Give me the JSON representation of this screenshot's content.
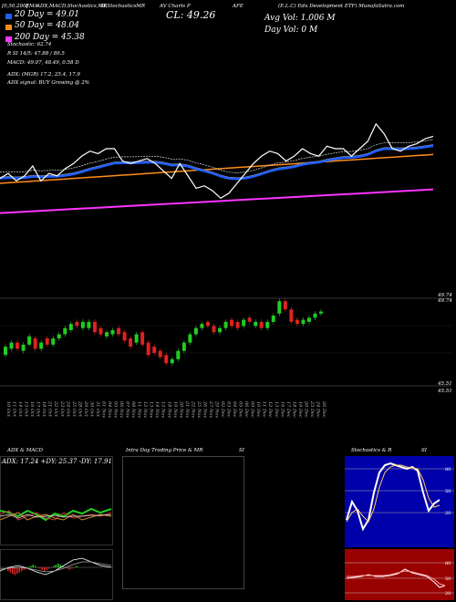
{
  "header": {
    "title_left": "ADX,MACD,Stochastics,MR",
    "date_range": "[0,50,200]",
    "ema_label": "EMA",
    "symbol_label": "SLStochasticsMR",
    "mid_label": "AV Charts P",
    "afe": "AFE",
    "etf_label": "(E.L.C) Edu Development ETF) MunafaSutra.com"
  },
  "legend": {
    "ema20": "20  Day  =  49.01",
    "ema50": "50  Day  =  48.04",
    "ema200": "200  Day  =  45.38",
    "cl": "CL: 49.26",
    "avg_vol": "Avg Vol: 1.006   M",
    "day_vol": "Day Vol: 0   M",
    "r_si": "R                 SI 14/5: 47.88 / 89.5",
    "stochastic": "Stochastic: 62.74",
    "macd": "MACD: 49.07, 48.49, 0.58  D",
    "adx": "ADX:                              (MGR) 17.2,  25.4,  17.9",
    "adx_signal": "ADX  signal:                                  BUY Growing @ 2%"
  },
  "price_axis": {
    "top_label": "49.74",
    "top_label2": "49.74",
    "bottom_label": "45.51",
    "bottom_label2": "45.51"
  },
  "x_axis": {
    "dates": [
      "10 Oct",
      "11 Oct",
      "14 Oct",
      "15 Oct",
      "16 Oct",
      "17 Oct",
      "18 Oct",
      "21 Oct",
      "22 Oct",
      "23 Oct",
      "24 Oct",
      "25 Oct",
      "28 Oct",
      "29 Oct",
      "30 Oct",
      "31 Oct",
      "01 Nov",
      "04 Nov",
      "05 Nov",
      "06 Nov",
      "07 Nov",
      "08 Nov",
      "11 Nov",
      "12 Nov",
      "13 Nov",
      "14 Nov",
      "15 Nov",
      "18 Nov",
      "19 Nov",
      "20 Nov",
      "21 Nov",
      "22 Nov",
      "25 Nov",
      "26 Nov",
      "27 Nov",
      "29 Nov",
      "02 Dec",
      "03 Dec",
      "04 Dec",
      "05 Dec",
      "06 Dec",
      "09 Dec",
      "10 Dec",
      "11 Dec",
      "12 Dec",
      "13 Dec",
      "16 Dec",
      "17 Dec",
      "18 Dec",
      "19 Dec",
      "20 Dec",
      "23 Dec",
      "24 Dec",
      "26 Dec"
    ]
  },
  "bottom_panels": {
    "adx_macd_title": "ADX  & MACD",
    "adx_readout": "ADX: 17.24   +DY: 25.37  -DY: 17.91",
    "intraday_title": "Intra  Day  Trading  Price  & MR",
    "intraday_si": "SI",
    "stoch_title": "Stochastics & R",
    "stoch_si": "SI",
    "stoch_levels": [
      "80",
      "50",
      "20"
    ],
    "rsi_levels": [
      "80",
      "50",
      "20"
    ]
  },
  "colors": {
    "up": "#22cc22",
    "down": "#dd2222",
    "ema20": "#1f5fff",
    "ema50": "#ff8c1a",
    "ema200": "#ff33ff",
    "price": "#ffffff",
    "stoch_bg": "#0000aa",
    "rsi_bg": "#990000"
  },
  "chart_data": {
    "type": "candlestick",
    "title": "(E.L.C) Edu Development ETF",
    "ylim": [
      45.51,
      49.74
    ],
    "series": [
      {
        "name": "close",
        "values": [
          47.4,
          47.6,
          47.3,
          47.5,
          47.9,
          47.3,
          47.6,
          47.5,
          47.8,
          48.0,
          48.3,
          48.5,
          48.4,
          48.6,
          48.6,
          48.1,
          48.0,
          48.1,
          48.2,
          48.0,
          47.7,
          47.4,
          48.0,
          47.5,
          47.0,
          47.1,
          46.9,
          46.6,
          46.8,
          47.2,
          47.6,
          48.0,
          48.3,
          48.5,
          48.4,
          48.1,
          48.3,
          48.6,
          48.4,
          48.3,
          48.7,
          48.6,
          48.6,
          48.3,
          48.6,
          48.9,
          49.6,
          49.2,
          48.6,
          48.5,
          48.7,
          48.8,
          49.0,
          49.1
        ]
      },
      {
        "name": "open",
        "values": [
          47.0,
          47.3,
          47.6,
          47.2,
          47.5,
          47.8,
          47.3,
          47.8,
          47.5,
          47.8,
          48.0,
          48.2,
          48.6,
          48.3,
          48.3,
          48.6,
          48.3,
          47.9,
          48.0,
          48.3,
          48.1,
          47.8,
          47.6,
          48.1,
          47.6,
          47.4,
          47.2,
          47.0,
          46.6,
          46.8,
          47.2,
          47.6,
          48.0,
          48.3,
          48.6,
          48.4,
          48.1,
          48.3,
          48.7,
          48.6,
          48.4,
          48.8,
          48.4,
          48.6,
          48.3,
          48.6,
          49.0,
          49.6,
          49.2,
          48.7,
          48.5,
          48.6,
          48.8,
          49.0
        ]
      }
    ]
  }
}
